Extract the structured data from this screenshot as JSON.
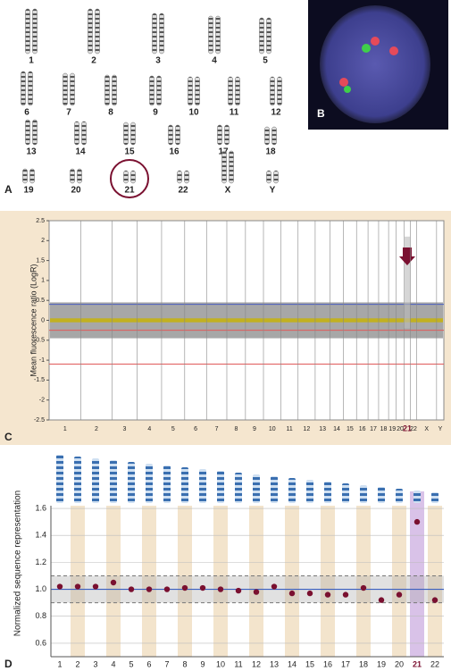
{
  "panel_labels": [
    "A",
    "B",
    "C",
    "D"
  ],
  "karyotype": {
    "labels": [
      "1",
      "2",
      "3",
      "4",
      "5",
      "6",
      "7",
      "8",
      "9",
      "10",
      "11",
      "12",
      "13",
      "14",
      "15",
      "16",
      "17",
      "18",
      "19",
      "20",
      "21",
      "22",
      "X",
      "Y"
    ],
    "circled": "21"
  },
  "chart_data": [
    {
      "type": "genome-scatter",
      "y_label": "Mean fluorescence ratio (LogR)",
      "categories": [
        "1",
        "2",
        "3",
        "4",
        "5",
        "6",
        "7",
        "8",
        "9",
        "10",
        "11",
        "12",
        "13",
        "14",
        "15",
        "16",
        "17",
        "18",
        "19",
        "20",
        "21",
        "22",
        "X",
        "Y"
      ],
      "highlight": "21",
      "ylim": [
        -2.5,
        2.5
      ],
      "yticks": [
        2.5,
        2,
        1.5,
        1,
        0.5,
        0,
        -0.5,
        -1,
        -1.5,
        -2,
        -2.5
      ],
      "hlines": [
        {
          "value": 0.4,
          "color": "#4a5fc0"
        },
        {
          "value": -0.25,
          "color": "#e05a5a"
        },
        {
          "value": -1.1,
          "color": "#e05a5a"
        }
      ],
      "color": "#777777",
      "highlight_color": "#7a1030"
    },
    {
      "type": "dot",
      "y_label": "Normalized sequence representation",
      "categories": [
        "1",
        "2",
        "3",
        "4",
        "5",
        "6",
        "7",
        "8",
        "9",
        "10",
        "11",
        "12",
        "13",
        "14",
        "15",
        "16",
        "17",
        "18",
        "19",
        "20",
        "21",
        "22"
      ],
      "values": [
        1.02,
        1.02,
        1.02,
        1.05,
        1.0,
        1.0,
        1.0,
        1.01,
        1.01,
        1.0,
        0.99,
        0.98,
        1.02,
        0.97,
        0.97,
        0.96,
        0.96,
        1.01,
        0.92,
        0.96,
        1.5,
        0.92
      ],
      "highlight": "21",
      "color": "#7a1030",
      "ylim": [
        0.5,
        1.62
      ],
      "yticks": [
        0.6,
        0.8,
        {
          "value": 1,
          "label": "1.0"
        },
        1.2,
        1.4,
        1.6
      ],
      "reference_band": [
        0.9,
        1.1
      ],
      "reference_line": 1,
      "grid": true
    }
  ]
}
